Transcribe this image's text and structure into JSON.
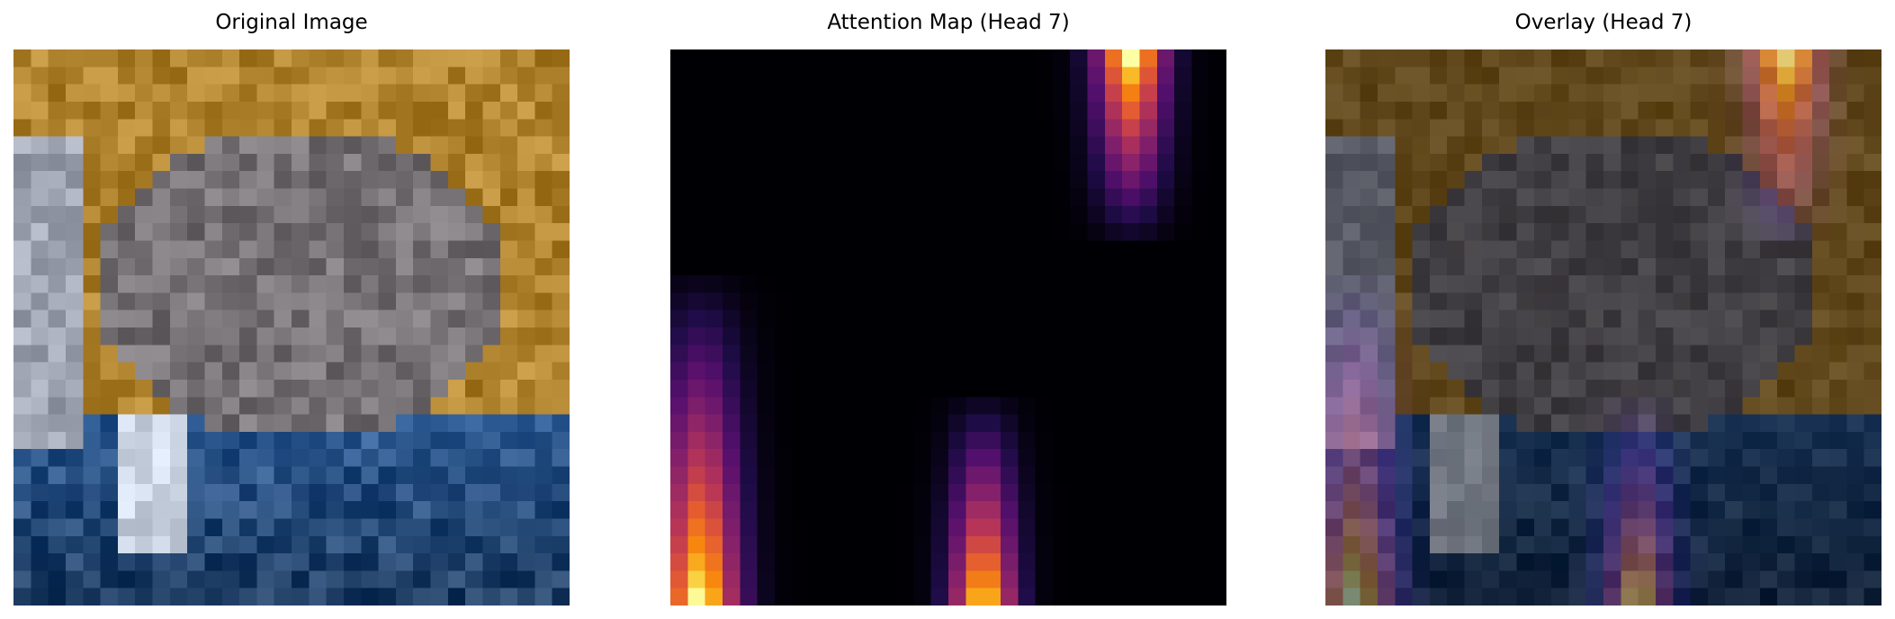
{
  "figure": {
    "panels": [
      {
        "title": "Original Image"
      },
      {
        "title": "Attention Map (Head 7)"
      },
      {
        "title": "Overlay (Head 7)"
      }
    ]
  },
  "colors": {
    "background": "#ffffff",
    "attention_colormap": "inferno",
    "sky": "#b0832f",
    "water": "#2d5a92",
    "animal": "#767276"
  },
  "attention_map": {
    "grid": "32x32",
    "hotspots": [
      {
        "region": "top-right",
        "peak": 1.0
      },
      {
        "region": "left-bottom",
        "peak": 1.0
      },
      {
        "region": "bottom-center",
        "peak": 0.9
      }
    ]
  }
}
